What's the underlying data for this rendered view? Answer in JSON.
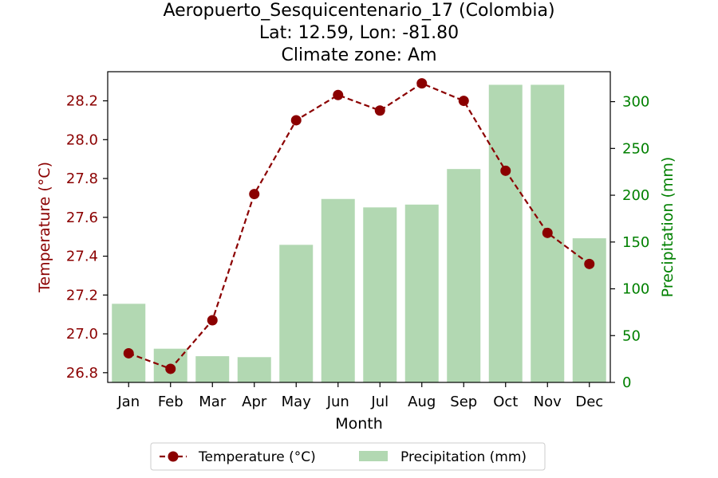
{
  "chart_data": {
    "type": "bar+line",
    "title_lines": [
      "Aeropuerto_Sesquicentenario_17 (Colombia)",
      "Lat: 12.59, Lon: -81.80",
      "Climate zone: Am"
    ],
    "categories": [
      "Jan",
      "Feb",
      "Mar",
      "Apr",
      "May",
      "Jun",
      "Jul",
      "Aug",
      "Sep",
      "Oct",
      "Nov",
      "Dec"
    ],
    "xlabel": "Month",
    "temperature": {
      "name": "Temperature (°C)",
      "axis_label": "Temperature (°C)",
      "color": "#8b0000",
      "values": [
        26.9,
        26.82,
        27.07,
        27.72,
        28.1,
        28.23,
        28.15,
        28.29,
        28.2,
        27.84,
        27.52,
        27.36
      ],
      "ylim": [
        26.75,
        28.35
      ],
      "ticks": [
        26.8,
        27.0,
        27.2,
        27.4,
        27.6,
        27.8,
        28.0,
        28.2
      ],
      "tick_labels": [
        "26.8",
        "27.0",
        "27.2",
        "27.4",
        "27.6",
        "27.8",
        "28.0",
        "28.2"
      ]
    },
    "precipitation": {
      "name": "Precipitation (mm)",
      "axis_label": "Precipitation (mm)",
      "color": "#008000",
      "bar_color": "#b2d8b2",
      "values": [
        84,
        36,
        28,
        27,
        147,
        196,
        187,
        190,
        228,
        318,
        318,
        154
      ],
      "ylim": [
        0,
        332
      ],
      "ticks": [
        0,
        50,
        100,
        150,
        200,
        250,
        300
      ],
      "tick_labels": [
        "0",
        "50",
        "100",
        "150",
        "200",
        "250",
        "300"
      ]
    },
    "legend": {
      "placement": "bottom-center",
      "entries": [
        "Temperature (°C)",
        "Precipitation (mm)"
      ]
    }
  }
}
